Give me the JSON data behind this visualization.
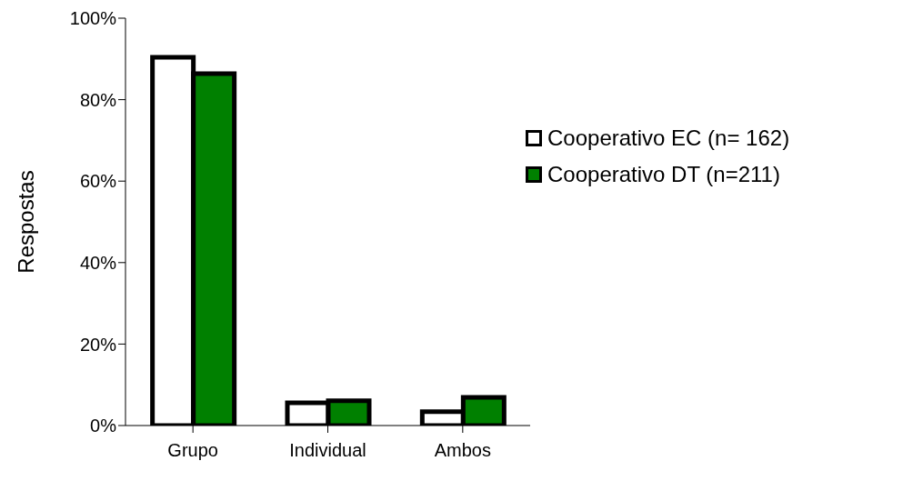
{
  "chart_data": {
    "type": "bar",
    "ylabel": "Respostas",
    "categories": [
      "Grupo",
      "Individual",
      "Ambos"
    ],
    "series": [
      {
        "name": "Cooperativo EC (n= 162)",
        "color": "#ffffff",
        "values": [
          90.4,
          5.6,
          3.4
        ]
      },
      {
        "name": "Cooperativo DT (n=211)",
        "color": "#008000",
        "values": [
          86.4,
          6.1,
          6.9
        ]
      }
    ],
    "ylim": [
      0,
      100
    ],
    "yticks": [
      {
        "value": 0,
        "label": "0%"
      },
      {
        "value": 20,
        "label": "20%"
      },
      {
        "value": 40,
        "label": "40%"
      },
      {
        "value": 60,
        "label": "60%"
      },
      {
        "value": 80,
        "label": "80%"
      },
      {
        "value": 100,
        "label": "100%"
      }
    ],
    "grid": false,
    "legend": "right"
  }
}
